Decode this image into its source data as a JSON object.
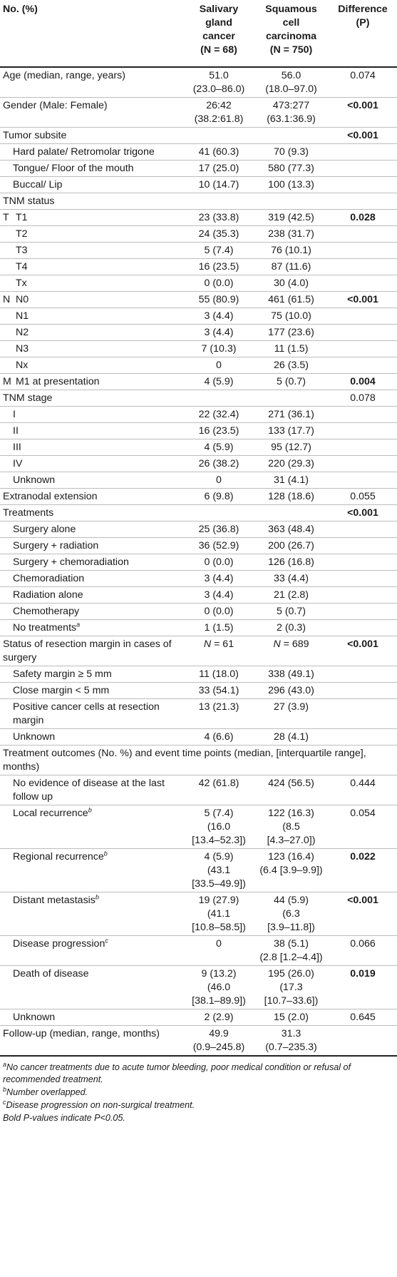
{
  "header": {
    "col1": "No. (%)",
    "col2": [
      "Salivary",
      "gland",
      "cancer",
      "(N = 68)"
    ],
    "col3": [
      "Squamous",
      "cell",
      "carcinoma",
      "(N = 750)"
    ],
    "col4": [
      "Difference",
      "(P)"
    ]
  },
  "rows": [
    {
      "label": "Age (median, range, years)",
      "a": [
        "51.0",
        "(23.0–86.0)"
      ],
      "b": [
        "56.0",
        "(18.0–97.0)"
      ],
      "p": "0.074",
      "bold": false,
      "indent": 0
    },
    {
      "label": "Gender (Male: Female)",
      "a": [
        "26:42",
        "(38.2:61.8)"
      ],
      "b": [
        "473:277",
        "(63.1:36.9)"
      ],
      "p": "<0.001",
      "bold": true,
      "indent": 0
    },
    {
      "label": "Tumor subsite",
      "a": [],
      "b": [],
      "p": "<0.001",
      "bold": true,
      "indent": 0
    },
    {
      "label": "Hard palate/ Retromolar trigone",
      "a": [
        "41 (60.3)"
      ],
      "b": [
        "70 (9.3)"
      ],
      "p": "",
      "indent": 1
    },
    {
      "label": "Tongue/ Floor of the mouth",
      "a": [
        "17 (25.0)"
      ],
      "b": [
        "580 (77.3)"
      ],
      "p": "",
      "indent": 1
    },
    {
      "label": "Buccal/ Lip",
      "a": [
        "10 (14.7)"
      ],
      "b": [
        "100 (13.3)"
      ],
      "p": "",
      "indent": 1
    },
    {
      "label": "TNM status",
      "a": [],
      "b": [],
      "p": "",
      "indent": 0
    },
    {
      "group": "T",
      "label": "T1",
      "a": [
        "23 (33.8)"
      ],
      "b": [
        "319 (42.5)"
      ],
      "p": "0.028",
      "bold": true,
      "indent": 2
    },
    {
      "label": "T2",
      "a": [
        "24 (35.3)"
      ],
      "b": [
        "238 (31.7)"
      ],
      "p": "",
      "indent": 2
    },
    {
      "label": "T3",
      "a": [
        "5 (7.4)"
      ],
      "b": [
        "76 (10.1)"
      ],
      "p": "",
      "indent": 2
    },
    {
      "label": "T4",
      "a": [
        "16 (23.5)"
      ],
      "b": [
        "87 (11.6)"
      ],
      "p": "",
      "indent": 2
    },
    {
      "label": "Tx",
      "a": [
        "0 (0.0)"
      ],
      "b": [
        "30 (4.0)"
      ],
      "p": "",
      "indent": 2
    },
    {
      "group": "N",
      "label": "N0",
      "a": [
        "55 (80.9)"
      ],
      "b": [
        "461 (61.5)"
      ],
      "p": "<0.001",
      "bold": true,
      "indent": 2
    },
    {
      "label": "N1",
      "a": [
        "3 (4.4)"
      ],
      "b": [
        "75 (10.0)"
      ],
      "p": "",
      "indent": 2
    },
    {
      "label": "N2",
      "a": [
        "3 (4.4)"
      ],
      "b": [
        "177 (23.6)"
      ],
      "p": "",
      "indent": 2
    },
    {
      "label": "N3",
      "a": [
        "7 (10.3)"
      ],
      "b": [
        "11 (1.5)"
      ],
      "p": "",
      "indent": 2
    },
    {
      "label": "Nx",
      "a": [
        "0"
      ],
      "b": [
        "26 (3.5)"
      ],
      "p": "",
      "indent": 2
    },
    {
      "group": "M",
      "label": "M1 at presentation",
      "a": [
        "4 (5.9)"
      ],
      "b": [
        "5 (0.7)"
      ],
      "p": "0.004",
      "bold": true,
      "indent": 2
    },
    {
      "label": "TNM stage",
      "a": [],
      "b": [],
      "p": "0.078",
      "bold": false,
      "indent": 0
    },
    {
      "label": "I",
      "a": [
        "22 (32.4)"
      ],
      "b": [
        "271 (36.1)"
      ],
      "p": "",
      "indent": 1
    },
    {
      "label": "II",
      "a": [
        "16 (23.5)"
      ],
      "b": [
        "133 (17.7)"
      ],
      "p": "",
      "indent": 1
    },
    {
      "label": "III",
      "a": [
        "4 (5.9)"
      ],
      "b": [
        "95 (12.7)"
      ],
      "p": "",
      "indent": 1
    },
    {
      "label": "IV",
      "a": [
        "26 (38.2)"
      ],
      "b": [
        "220 (29.3)"
      ],
      "p": "",
      "indent": 1
    },
    {
      "label": "Unknown",
      "a": [
        "0"
      ],
      "b": [
        "31 (4.1)"
      ],
      "p": "",
      "indent": 1
    },
    {
      "label": "Extranodal extension",
      "a": [
        "6 (9.8)"
      ],
      "b": [
        "128 (18.6)"
      ],
      "p": "0.055",
      "bold": false,
      "indent": 0
    },
    {
      "label": "Treatments",
      "a": [],
      "b": [],
      "p": "<0.001",
      "bold": true,
      "indent": 0
    },
    {
      "label": "Surgery alone",
      "a": [
        "25 (36.8)"
      ],
      "b": [
        "363 (48.4)"
      ],
      "p": "",
      "indent": 1
    },
    {
      "label": "Surgery + radiation",
      "a": [
        "36 (52.9)"
      ],
      "b": [
        "200 (26.7)"
      ],
      "p": "",
      "indent": 1
    },
    {
      "label": "Surgery + chemoradiation",
      "a": [
        "0 (0.0)"
      ],
      "b": [
        "126 (16.8)"
      ],
      "p": "",
      "indent": 1
    },
    {
      "label": "Chemoradiation",
      "a": [
        "3 (4.4)"
      ],
      "b": [
        "33 (4.4)"
      ],
      "p": "",
      "indent": 1
    },
    {
      "label": "Radiation alone",
      "a": [
        "3 (4.4)"
      ],
      "b": [
        "21 (2.8)"
      ],
      "p": "",
      "indent": 1
    },
    {
      "label": "Chemotherapy",
      "a": [
        "0 (0.0)"
      ],
      "b": [
        "5 (0.7)"
      ],
      "p": "",
      "indent": 1
    },
    {
      "label": "No treatments",
      "sup": "a",
      "a": [
        "1 (1.5)"
      ],
      "b": [
        "2 (0.3)"
      ],
      "p": "",
      "indent": 1
    },
    {
      "label": "Status of resection margin in cases of surgery",
      "a": [
        "N = 61"
      ],
      "b": [
        "N = 689"
      ],
      "p": "<0.001",
      "bold": true,
      "indent": 0,
      "italicN": true
    },
    {
      "label": "Safety margin ≥ 5 mm",
      "a": [
        "11 (18.0)"
      ],
      "b": [
        "338 (49.1)"
      ],
      "p": "",
      "indent": 1
    },
    {
      "label": "Close margin < 5 mm",
      "a": [
        "33 (54.1)"
      ],
      "b": [
        "296 (43.0)"
      ],
      "p": "",
      "indent": 1
    },
    {
      "label": "Positive cancer cells at resection margin",
      "a": [
        "13 (21.3)"
      ],
      "b": [
        "27 (3.9)"
      ],
      "p": "",
      "indent": 1
    },
    {
      "label": "Unknown",
      "a": [
        "4 (6.6)"
      ],
      "b": [
        "28 (4.1)"
      ],
      "p": "",
      "indent": 1
    },
    {
      "label": "Treatment outcomes (No. %) and event time points (median, [interquartile range], months)",
      "span": true,
      "indent": 0
    },
    {
      "label": "No evidence of disease at the last follow up",
      "a": [
        "42 (61.8)"
      ],
      "b": [
        "424 (56.5)"
      ],
      "p": "0.444",
      "bold": false,
      "indent": 1
    },
    {
      "label": "Local recurrence",
      "sup": "b",
      "a": [
        "5 (7.4)",
        "(16.0",
        "[13.4–52.3])"
      ],
      "b": [
        "122 (16.3)",
        "(8.5",
        "[4.3–27.0])"
      ],
      "p": "0.054",
      "bold": false,
      "indent": 1,
      "tall": true
    },
    {
      "label": "Regional recurrence",
      "sup": "b",
      "a": [
        "4 (5.9)",
        "(43.1",
        "[33.5–49.9])"
      ],
      "b": [
        "123 (16.4)",
        "(6.4 [3.9–9.9])"
      ],
      "p": "0.022",
      "bold": true,
      "indent": 1,
      "tall": true
    },
    {
      "label": "Distant metastasis",
      "sup": "b",
      "a": [
        "19 (27.9)",
        "(41.1",
        "[10.8–58.5])"
      ],
      "b": [
        "44 (5.9)",
        "(6.3",
        "[3.9–11.8])"
      ],
      "p": "<0.001",
      "bold": true,
      "indent": 1,
      "tall": true
    },
    {
      "label": "Disease progression",
      "sup": "c",
      "a": [
        "0"
      ],
      "b": [
        "38 (5.1)",
        "(2.8 [1.2–4.4])"
      ],
      "p": "0.066",
      "bold": false,
      "indent": 1,
      "tall": true
    },
    {
      "label": "Death of disease",
      "a": [
        "9 (13.2)",
        "(46.0",
        "[38.1–89.9])"
      ],
      "b": [
        "195 (26.0)",
        "(17.3",
        "[10.7–33.6])"
      ],
      "p": "0.019",
      "bold": true,
      "indent": 1,
      "tall": true
    },
    {
      "label": "Unknown",
      "a": [
        "2 (2.9)"
      ],
      "b": [
        "15 (2.0)"
      ],
      "p": "0.645",
      "bold": false,
      "indent": 1
    },
    {
      "label": "Follow-up (median, range, months)",
      "a": [
        "49.9",
        "(0.9–245.8)"
      ],
      "b": [
        "31.3",
        "(0.7–235.3)"
      ],
      "p": "",
      "indent": 0,
      "last": true
    }
  ],
  "footnotes": [
    {
      "mark": "a",
      "text": "No cancer treatments due to acute tumor bleeding, poor medical condition or refusal of recommended treatment."
    },
    {
      "mark": "b",
      "text": "Number overlapped."
    },
    {
      "mark": "c",
      "text": "Disease progression on non-surgical treatment."
    },
    {
      "mark": "",
      "text": "Bold P-values indicate P<0.05."
    }
  ]
}
